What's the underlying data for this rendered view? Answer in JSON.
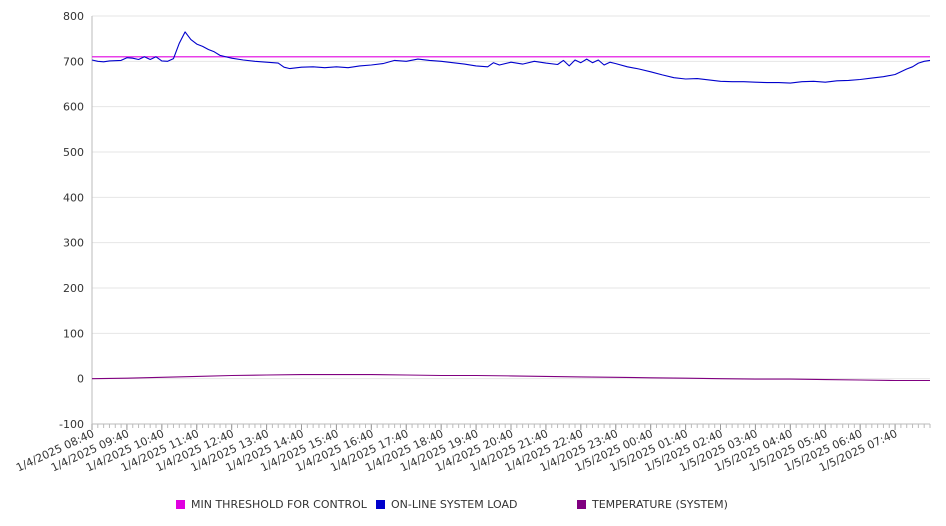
{
  "chart_data": {
    "type": "line",
    "title": "",
    "xlabel": "",
    "ylabel": "",
    "ylim": [
      -100,
      800
    ],
    "yticks": [
      800,
      700,
      600,
      500,
      400,
      300,
      200,
      100,
      0,
      -100
    ],
    "grid": true,
    "legend_position": "bottom",
    "x_tick_labels": [
      "1/4/2025 08:40",
      "1/4/2025 09:40",
      "1/4/2025 10:40",
      "1/4/2025 11:40",
      "1/4/2025 12:40",
      "1/4/2025 13:40",
      "1/4/2025 14:40",
      "1/4/2025 15:40",
      "1/4/2025 16:40",
      "1/4/2025 17:40",
      "1/4/2025 18:40",
      "1/4/2025 19:40",
      "1/4/2025 20:40",
      "1/4/2025 21:40",
      "1/4/2025 22:40",
      "1/4/2025 23:40",
      "1/5/2025 00:40",
      "1/5/2025 01:40",
      "1/5/2025 02:40",
      "1/5/2025 03:40",
      "1/5/2025 04:40",
      "1/5/2025 05:40",
      "1/5/2025 06:40",
      "1/5/2025 07:40"
    ],
    "x_range": [
      "1/4/2025 08:40",
      "1/5/2025 08:40"
    ],
    "series": [
      {
        "name": "MIN THRESHOLD FOR CONTROL",
        "color": "#e000e0",
        "points": [
          [
            "1/4/2025 08:40",
            710
          ],
          [
            "1/5/2025 08:40",
            710
          ]
        ]
      },
      {
        "name": "ON-LINE SYSTEM LOAD",
        "color": "#0000cc",
        "points": [
          [
            "1/4/2025 08:40",
            703
          ],
          [
            "1/4/2025 08:50",
            700
          ],
          [
            "1/4/2025 09:00",
            699
          ],
          [
            "1/4/2025 09:10",
            701
          ],
          [
            "1/4/2025 09:30",
            702
          ],
          [
            "1/4/2025 09:40",
            708
          ],
          [
            "1/4/2025 09:50",
            707
          ],
          [
            "1/4/2025 10:00",
            704
          ],
          [
            "1/4/2025 10:10",
            710
          ],
          [
            "1/4/2025 10:20",
            704
          ],
          [
            "1/4/2025 10:30",
            710
          ],
          [
            "1/4/2025 10:40",
            701
          ],
          [
            "1/4/2025 10:50",
            700
          ],
          [
            "1/4/2025 11:00",
            706
          ],
          [
            "1/4/2025 11:10",
            740
          ],
          [
            "1/4/2025 11:20",
            765
          ],
          [
            "1/4/2025 11:30",
            748
          ],
          [
            "1/4/2025 11:40",
            738
          ],
          [
            "1/4/2025 11:50",
            733
          ],
          [
            "1/4/2025 12:00",
            726
          ],
          [
            "1/4/2025 12:10",
            721
          ],
          [
            "1/4/2025 12:20",
            713
          ],
          [
            "1/4/2025 12:40",
            707
          ],
          [
            "1/4/2025 13:00",
            703
          ],
          [
            "1/4/2025 13:20",
            700
          ],
          [
            "1/4/2025 13:40",
            698
          ],
          [
            "1/4/2025 14:00",
            696
          ],
          [
            "1/4/2025 14:10",
            687
          ],
          [
            "1/4/2025 14:20",
            684
          ],
          [
            "1/4/2025 14:40",
            687
          ],
          [
            "1/4/2025 15:00",
            688
          ],
          [
            "1/4/2025 15:20",
            686
          ],
          [
            "1/4/2025 15:40",
            688
          ],
          [
            "1/4/2025 16:00",
            686
          ],
          [
            "1/4/2025 16:20",
            690
          ],
          [
            "1/4/2025 16:40",
            692
          ],
          [
            "1/4/2025 17:00",
            695
          ],
          [
            "1/4/2025 17:20",
            702
          ],
          [
            "1/4/2025 17:40",
            700
          ],
          [
            "1/4/2025 18:00",
            705
          ],
          [
            "1/4/2025 18:20",
            702
          ],
          [
            "1/4/2025 18:40",
            700
          ],
          [
            "1/4/2025 19:00",
            697
          ],
          [
            "1/4/2025 19:20",
            694
          ],
          [
            "1/4/2025 19:40",
            690
          ],
          [
            "1/4/2025 20:00",
            688
          ],
          [
            "1/4/2025 20:10",
            697
          ],
          [
            "1/4/2025 20:20",
            692
          ],
          [
            "1/4/2025 20:40",
            698
          ],
          [
            "1/4/2025 21:00",
            694
          ],
          [
            "1/4/2025 21:20",
            700
          ],
          [
            "1/4/2025 21:40",
            696
          ],
          [
            "1/4/2025 22:00",
            693
          ],
          [
            "1/4/2025 22:10",
            702
          ],
          [
            "1/4/2025 22:20",
            690
          ],
          [
            "1/4/2025 22:30",
            703
          ],
          [
            "1/4/2025 22:40",
            697
          ],
          [
            "1/4/2025 22:50",
            705
          ],
          [
            "1/4/2025 23:00",
            697
          ],
          [
            "1/4/2025 23:10",
            703
          ],
          [
            "1/4/2025 23:20",
            692
          ],
          [
            "1/4/2025 23:30",
            698
          ],
          [
            "1/4/2025 23:40",
            695
          ],
          [
            "1/5/2025 00:00",
            688
          ],
          [
            "1/5/2025 00:20",
            683
          ],
          [
            "1/5/2025 00:40",
            677
          ],
          [
            "1/5/2025 01:00",
            670
          ],
          [
            "1/5/2025 01:20",
            664
          ],
          [
            "1/5/2025 01:40",
            661
          ],
          [
            "1/5/2025 02:00",
            662
          ],
          [
            "1/5/2025 02:20",
            659
          ],
          [
            "1/5/2025 02:40",
            656
          ],
          [
            "1/5/2025 03:00",
            655
          ],
          [
            "1/5/2025 03:20",
            655
          ],
          [
            "1/5/2025 03:40",
            654
          ],
          [
            "1/5/2025 04:00",
            653
          ],
          [
            "1/5/2025 04:20",
            653
          ],
          [
            "1/5/2025 04:40",
            652
          ],
          [
            "1/5/2025 05:00",
            655
          ],
          [
            "1/5/2025 05:20",
            656
          ],
          [
            "1/5/2025 05:40",
            654
          ],
          [
            "1/5/2025 06:00",
            657
          ],
          [
            "1/5/2025 06:20",
            658
          ],
          [
            "1/5/2025 06:40",
            660
          ],
          [
            "1/5/2025 07:00",
            663
          ],
          [
            "1/5/2025 07:20",
            666
          ],
          [
            "1/5/2025 07:40",
            671
          ],
          [
            "1/5/2025 07:50",
            677
          ],
          [
            "1/5/2025 08:00",
            683
          ],
          [
            "1/5/2025 08:10",
            688
          ],
          [
            "1/5/2025 08:20",
            696
          ],
          [
            "1/5/2025 08:30",
            700
          ],
          [
            "1/5/2025 08:40",
            702
          ]
        ]
      },
      {
        "name": "TEMPERATURE (SYSTEM)",
        "color": "#800080",
        "points": [
          [
            "1/4/2025 08:40",
            0
          ],
          [
            "1/4/2025 09:40",
            1
          ],
          [
            "1/4/2025 10:40",
            3
          ],
          [
            "1/4/2025 11:40",
            5
          ],
          [
            "1/4/2025 12:40",
            7
          ],
          [
            "1/4/2025 13:40",
            8
          ],
          [
            "1/4/2025 14:40",
            9
          ],
          [
            "1/4/2025 15:40",
            9
          ],
          [
            "1/4/2025 16:40",
            9
          ],
          [
            "1/4/2025 17:40",
            8
          ],
          [
            "1/4/2025 18:40",
            7
          ],
          [
            "1/4/2025 19:40",
            7
          ],
          [
            "1/4/2025 20:40",
            6
          ],
          [
            "1/4/2025 21:40",
            5
          ],
          [
            "1/4/2025 22:40",
            4
          ],
          [
            "1/4/2025 23:40",
            3
          ],
          [
            "1/5/2025 00:40",
            2
          ],
          [
            "1/5/2025 01:40",
            1
          ],
          [
            "1/5/2025 02:40",
            0
          ],
          [
            "1/5/2025 03:40",
            -1
          ],
          [
            "1/5/2025 04:40",
            -1
          ],
          [
            "1/5/2025 05:40",
            -2
          ],
          [
            "1/5/2025 06:40",
            -3
          ],
          [
            "1/5/2025 07:40",
            -4
          ],
          [
            "1/5/2025 08:40",
            -4
          ]
        ]
      }
    ]
  }
}
